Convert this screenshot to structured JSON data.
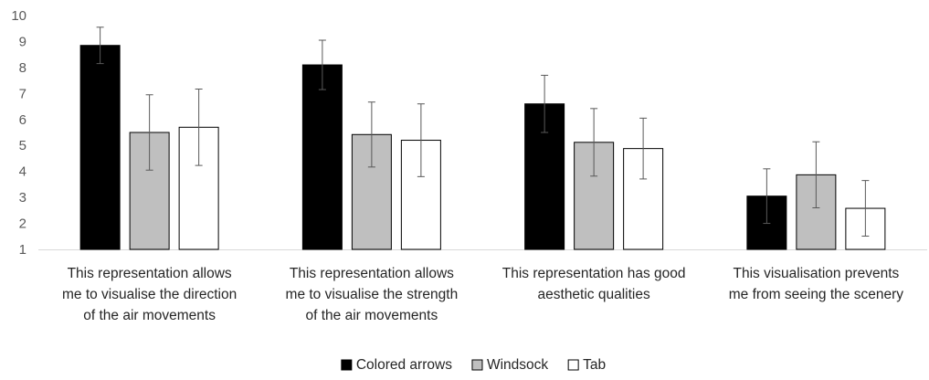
{
  "chart_data": {
    "type": "bar",
    "categories": [
      [
        "This representation allows",
        "me to visualise the direction",
        "of the air movements"
      ],
      [
        "This representation allows",
        "me to visualise the strength",
        "of the air movements"
      ],
      [
        "This representation has good",
        "aesthetic qualities"
      ],
      [
        "This visualisation prevents",
        "me from seeing the scenery"
      ]
    ],
    "series": [
      {
        "name": "Colored arrows",
        "color": "#000000",
        "values": [
          8.85,
          8.1,
          6.6,
          3.05
        ],
        "errors": [
          0.7,
          0.95,
          1.1,
          1.05
        ]
      },
      {
        "name": "Windsock",
        "color": "#bfbfbf",
        "values": [
          5.5,
          5.42,
          5.12,
          3.87
        ],
        "errors": [
          1.45,
          1.25,
          1.3,
          1.27
        ]
      },
      {
        "name": "Tab",
        "color": "#ffffff",
        "values": [
          5.7,
          5.2,
          4.88,
          2.58
        ],
        "errors": [
          1.47,
          1.4,
          1.17,
          1.07
        ]
      }
    ],
    "yticks": [
      1,
      2,
      3,
      4,
      5,
      6,
      7,
      8,
      9,
      10
    ],
    "ylim": [
      1,
      10
    ],
    "grid": false,
    "legend_position": "bottom"
  }
}
